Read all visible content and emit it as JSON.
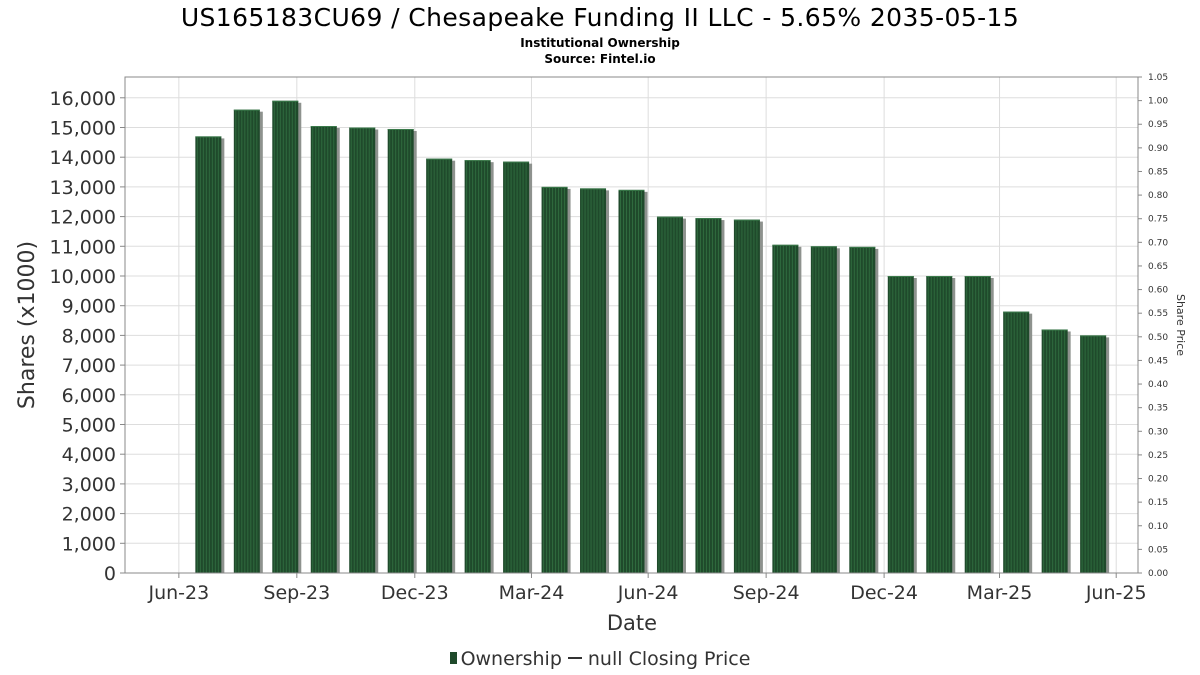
{
  "header": {
    "title": "US165183CU69 / Chesapeake Funding II LLC - 5.65% 2035-05-15",
    "subtitle": "Institutional Ownership",
    "source": "Source: Fintel.io"
  },
  "legend": {
    "ownership_label": "Ownership",
    "closing_price_label": "null Closing Price"
  },
  "colors": {
    "bar": "#1f4a2b",
    "bar_stripe": "#2f6a3e",
    "bar_shadow": "#8e928e",
    "grid": "#dddddd",
    "axis": "#888888",
    "tick_text": "#333333"
  },
  "chart_data": {
    "type": "bar",
    "title": "US165183CU69 / Chesapeake Funding II LLC - 5.65% 2035-05-15",
    "subtitle": "Institutional Ownership",
    "xlabel": "Date",
    "ylabel": "Shares (x1000)",
    "y2label": "Share Price",
    "x_range": [
      "2023-05-19",
      "2025-07-17"
    ],
    "ylim": [
      0,
      16700
    ],
    "y2lim": [
      0,
      1.05
    ],
    "grid": true,
    "legend_position": "bottom",
    "x_tick_labels": [
      {
        "date": "2023-06-30",
        "label": "Jun-23"
      },
      {
        "date": "2023-09-30",
        "label": "Sep-23"
      },
      {
        "date": "2023-12-31",
        "label": "Dec-23"
      },
      {
        "date": "2024-03-31",
        "label": "Mar-24"
      },
      {
        "date": "2024-06-30",
        "label": "Jun-24"
      },
      {
        "date": "2024-09-30",
        "label": "Sep-24"
      },
      {
        "date": "2024-12-31",
        "label": "Dec-24"
      },
      {
        "date": "2025-03-31",
        "label": "Mar-25"
      },
      {
        "date": "2025-06-30",
        "label": "Jun-25"
      }
    ],
    "y_ticks": [
      {
        "value": 0,
        "label": "0"
      },
      {
        "value": 1000,
        "label": "1,000"
      },
      {
        "value": 2000,
        "label": "2,000"
      },
      {
        "value": 3000,
        "label": "3,000"
      },
      {
        "value": 4000,
        "label": "4,000"
      },
      {
        "value": 5000,
        "label": "5,000"
      },
      {
        "value": 6000,
        "label": "6,000"
      },
      {
        "value": 7000,
        "label": "7,000"
      },
      {
        "value": 8000,
        "label": "8,000"
      },
      {
        "value": 9000,
        "label": "9,000"
      },
      {
        "value": 10000,
        "label": "10,000"
      },
      {
        "value": 11000,
        "label": "11,000"
      },
      {
        "value": 12000,
        "label": "12,000"
      },
      {
        "value": 13000,
        "label": "13,000"
      },
      {
        "value": 14000,
        "label": "14,000"
      },
      {
        "value": 15000,
        "label": "15,000"
      },
      {
        "value": 16000,
        "label": "16,000"
      }
    ],
    "y2_ticks": [
      "0.00",
      "0.05",
      "0.10",
      "0.15",
      "0.20",
      "0.25",
      "0.30",
      "0.35",
      "0.40",
      "0.45",
      "0.50",
      "0.55",
      "0.60",
      "0.65",
      "0.70",
      "0.75",
      "0.80",
      "0.85",
      "0.90",
      "0.95",
      "1.00",
      "1.05"
    ],
    "series": [
      {
        "name": "Ownership",
        "points": [
          {
            "date": "2023-07-23",
            "value": 14700
          },
          {
            "date": "2023-08-22",
            "value": 15600
          },
          {
            "date": "2023-09-21",
            "value": 15900
          },
          {
            "date": "2023-10-21",
            "value": 15050
          },
          {
            "date": "2023-11-20",
            "value": 15000
          },
          {
            "date": "2023-12-20",
            "value": 14950
          },
          {
            "date": "2024-01-19",
            "value": 13950
          },
          {
            "date": "2024-02-18",
            "value": 13900
          },
          {
            "date": "2024-03-19",
            "value": 13850
          },
          {
            "date": "2024-04-18",
            "value": 13000
          },
          {
            "date": "2024-05-18",
            "value": 12950
          },
          {
            "date": "2024-06-17",
            "value": 12900
          },
          {
            "date": "2024-07-17",
            "value": 12000
          },
          {
            "date": "2024-08-16",
            "value": 11950
          },
          {
            "date": "2024-09-15",
            "value": 11900
          },
          {
            "date": "2024-10-15",
            "value": 11050
          },
          {
            "date": "2024-11-14",
            "value": 11000
          },
          {
            "date": "2024-12-14",
            "value": 10980
          },
          {
            "date": "2025-01-13",
            "value": 10000
          },
          {
            "date": "2025-02-12",
            "value": 10000
          },
          {
            "date": "2025-03-14",
            "value": 10000
          },
          {
            "date": "2025-04-13",
            "value": 8800
          },
          {
            "date": "2025-05-13",
            "value": 8200
          },
          {
            "date": "2025-06-12",
            "value": 8000
          }
        ]
      }
    ]
  }
}
